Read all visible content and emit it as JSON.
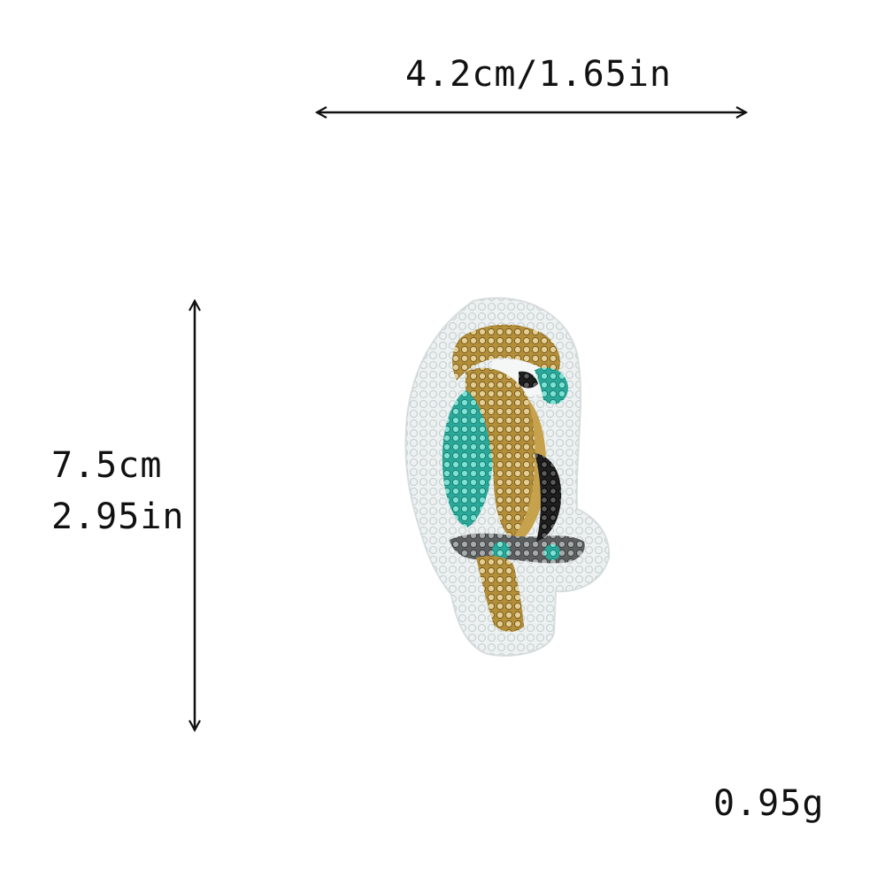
{
  "product": {
    "width_label": "4.2cm/1.65in",
    "height_label_cm": "7.5cm",
    "height_label_in": "2.95in",
    "weight_label": "0.95g"
  },
  "patch": {
    "subject": "sequin parrot patch",
    "colors": {
      "backing": "#eef1f1",
      "gold": "#b38f3a",
      "turquoise": "#3fc6b4",
      "gray": "#7a7d7e",
      "black": "#2a2a2a"
    }
  }
}
